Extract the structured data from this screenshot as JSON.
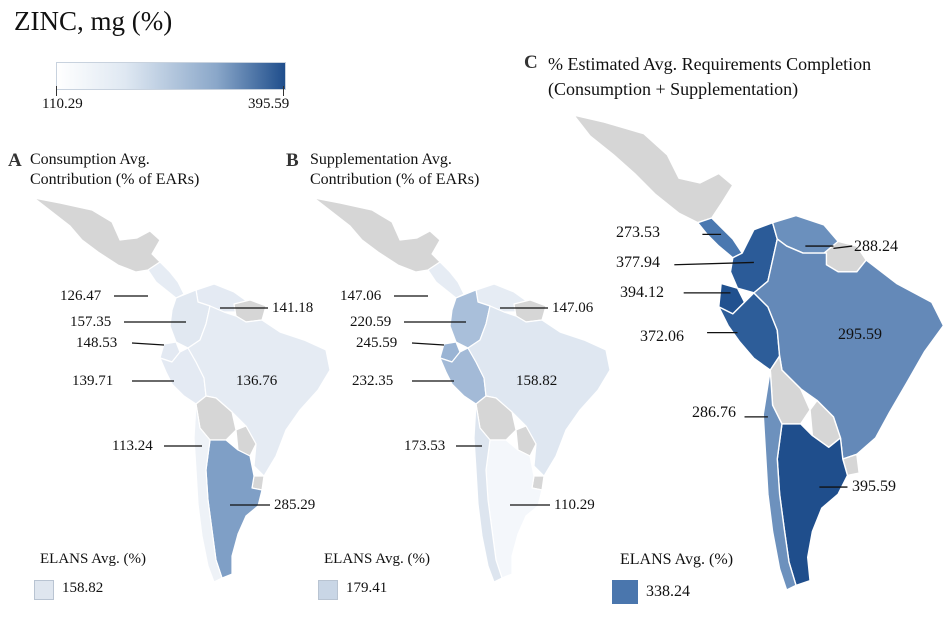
{
  "title": "ZINC, mg (%)",
  "scale": {
    "min_label": "110.29",
    "max_label": "395.59",
    "min_color": "#ffffff",
    "max_color": "#1f4e8c"
  },
  "panels": [
    {
      "letter": "A",
      "title_line1": "Consumption Avg.",
      "title_line2": "Contribution (% of EARs)",
      "values": {
        "central_america": "126.47",
        "colombia": "157.35",
        "ecuador": "148.53",
        "peru": "139.71",
        "chile": "113.24",
        "venezuela": "141.18",
        "brazil": "136.76",
        "argentina": "285.29"
      },
      "legend_label": "ELANS Avg. (%)",
      "legend_value": "158.82",
      "legend_color": "#dfe6ef"
    },
    {
      "letter": "B",
      "title_line1": "Supplementation Avg.",
      "title_line2": "Contribution (% of EARs)",
      "values": {
        "central_america": "147.06",
        "colombia": "220.59",
        "ecuador": "245.59",
        "peru": "232.35",
        "chile": "173.53",
        "venezuela": "147.06",
        "brazil": "158.82",
        "argentina": "110.29"
      },
      "legend_label": "ELANS Avg. (%)",
      "legend_value": "179.41",
      "legend_color": "#c9d6e6"
    },
    {
      "letter": "C",
      "title_line1": "% Estimated Avg. Requirements Completion",
      "title_line2": "(Consumption + Supplementation)",
      "values": {
        "central_america": "273.53",
        "colombia": "377.94",
        "ecuador": "394.12",
        "peru": "372.06",
        "chile": "286.76",
        "venezuela": "288.24",
        "brazil": "295.59",
        "argentina": "395.59"
      },
      "legend_label": "ELANS Avg. (%)",
      "legend_value": "338.24",
      "legend_color": "#4a76ad"
    }
  ],
  "colors": {
    "no_data": "#d6d6d6",
    "A": {
      "central_america": "#e6ecf4",
      "colombia": "#e1e8f1",
      "ecuador": "#e3e9f2",
      "peru": "#e4eaf3",
      "chile": "#eef2f7",
      "venezuela": "#e4eaf3",
      "brazil": "#e5ebf3",
      "argentina": "#7f9fc6"
    },
    "B": {
      "central_america": "#e6ecf4",
      "colombia": "#a9bfda",
      "ecuador": "#9ab4d4",
      "peru": "#a3bad7",
      "chile": "#dde5ef",
      "venezuela": "#e6ecf4",
      "brazil": "#dfe7f1",
      "argentina": "#f4f7fb"
    },
    "C": {
      "central_america": "#4a78b0",
      "colombia": "#2b5b98",
      "ecuador": "#21518f",
      "peru": "#2d5d99",
      "chile": "#6d91bd",
      "venezuela": "#6b90bd",
      "brazil": "#6489b8",
      "argentina": "#1f4e8c"
    }
  }
}
